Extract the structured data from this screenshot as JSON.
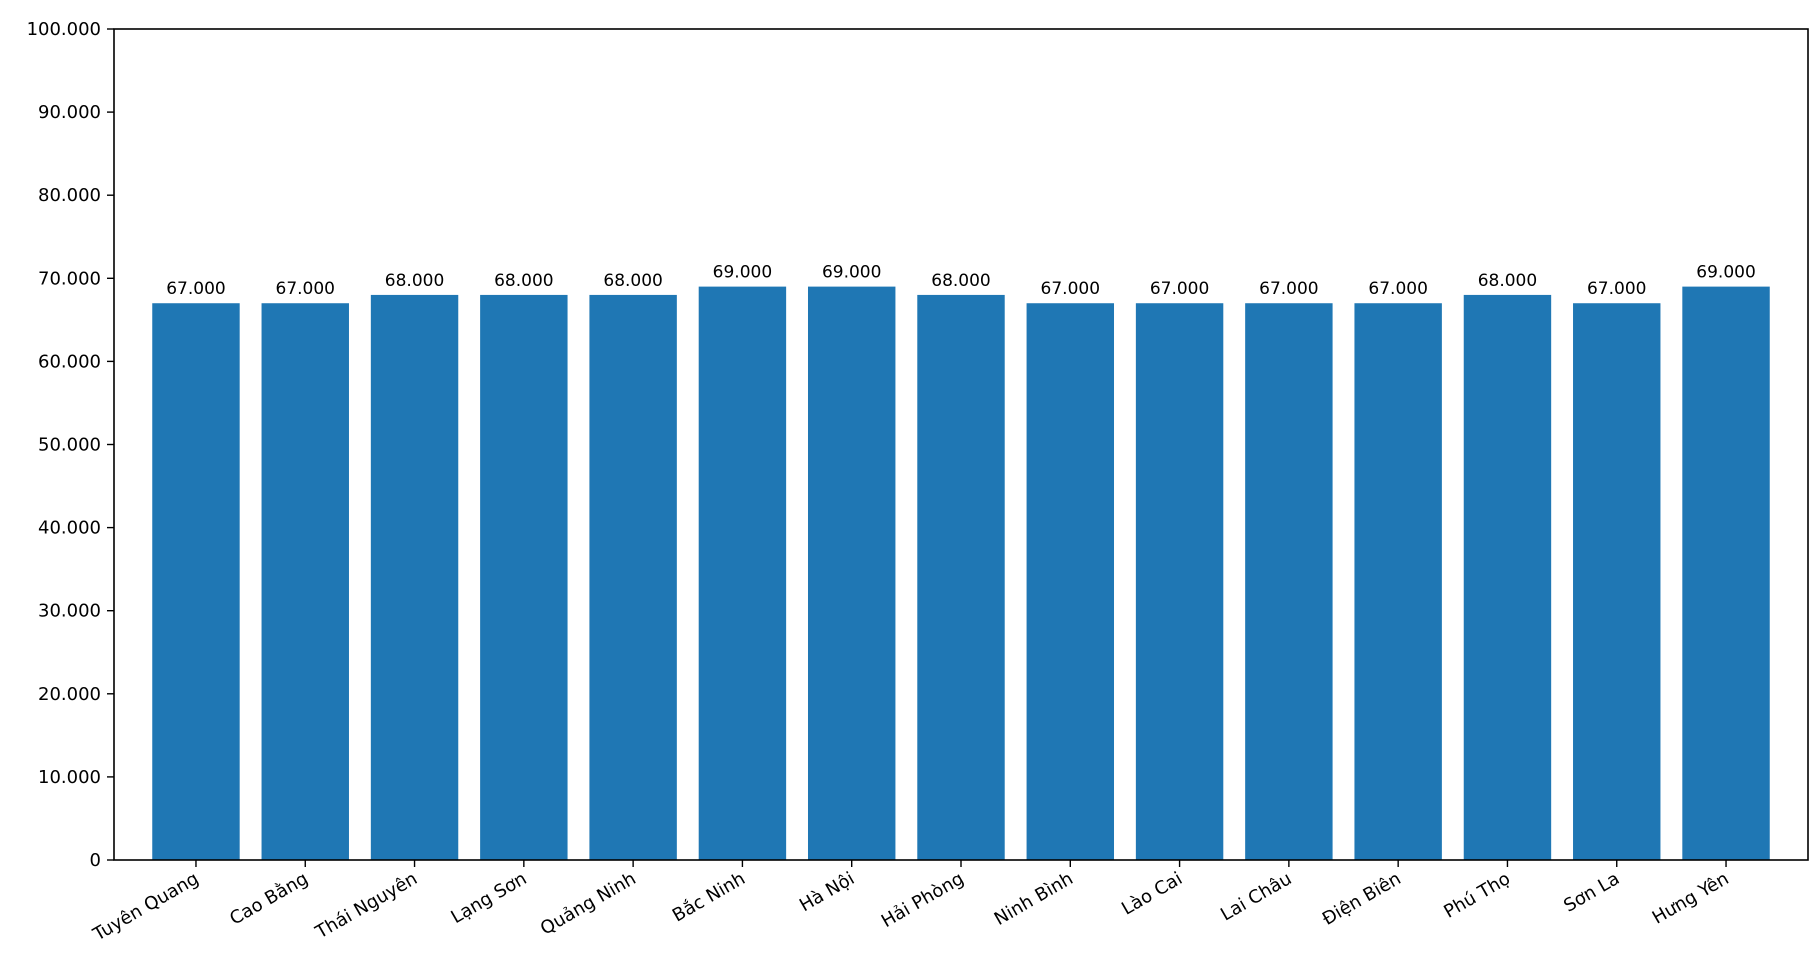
{
  "chart_data": {
    "type": "bar",
    "title": "",
    "xlabel": "",
    "ylabel": "",
    "categories": [
      "Tuyên Quang",
      "Cao Bằng",
      "Thái Nguyên",
      "Lạng Sơn",
      "Quảng Ninh",
      "Bắc Ninh",
      "Hà Nội",
      "Hải Phòng",
      "Ninh Bình",
      "Lào Cai",
      "Lai Châu",
      "Điện Biên",
      "Phú Thọ",
      "Sơn La",
      "Hưng Yên"
    ],
    "values": [
      67000,
      67000,
      68000,
      68000,
      68000,
      69000,
      69000,
      68000,
      67000,
      67000,
      67000,
      67000,
      68000,
      67000,
      69000
    ],
    "value_labels": [
      "67.000",
      "67.000",
      "68.000",
      "68.000",
      "68.000",
      "69.000",
      "69.000",
      "68.000",
      "67.000",
      "67.000",
      "67.000",
      "67.000",
      "68.000",
      "67.000",
      "69.000"
    ],
    "ylim": [
      0,
      100000
    ],
    "yticks": [
      0,
      10000,
      20000,
      30000,
      40000,
      50000,
      60000,
      70000,
      80000,
      90000,
      100000
    ],
    "ytick_labels": [
      "0",
      "10.000",
      "20.000",
      "30.000",
      "40.000",
      "50.000",
      "60.000",
      "70.000",
      "80.000",
      "90.000",
      "100.000"
    ],
    "bar_color": "#1f77b4",
    "grid": false,
    "legend": "none",
    "xtick_rotation": "diagonal"
  }
}
